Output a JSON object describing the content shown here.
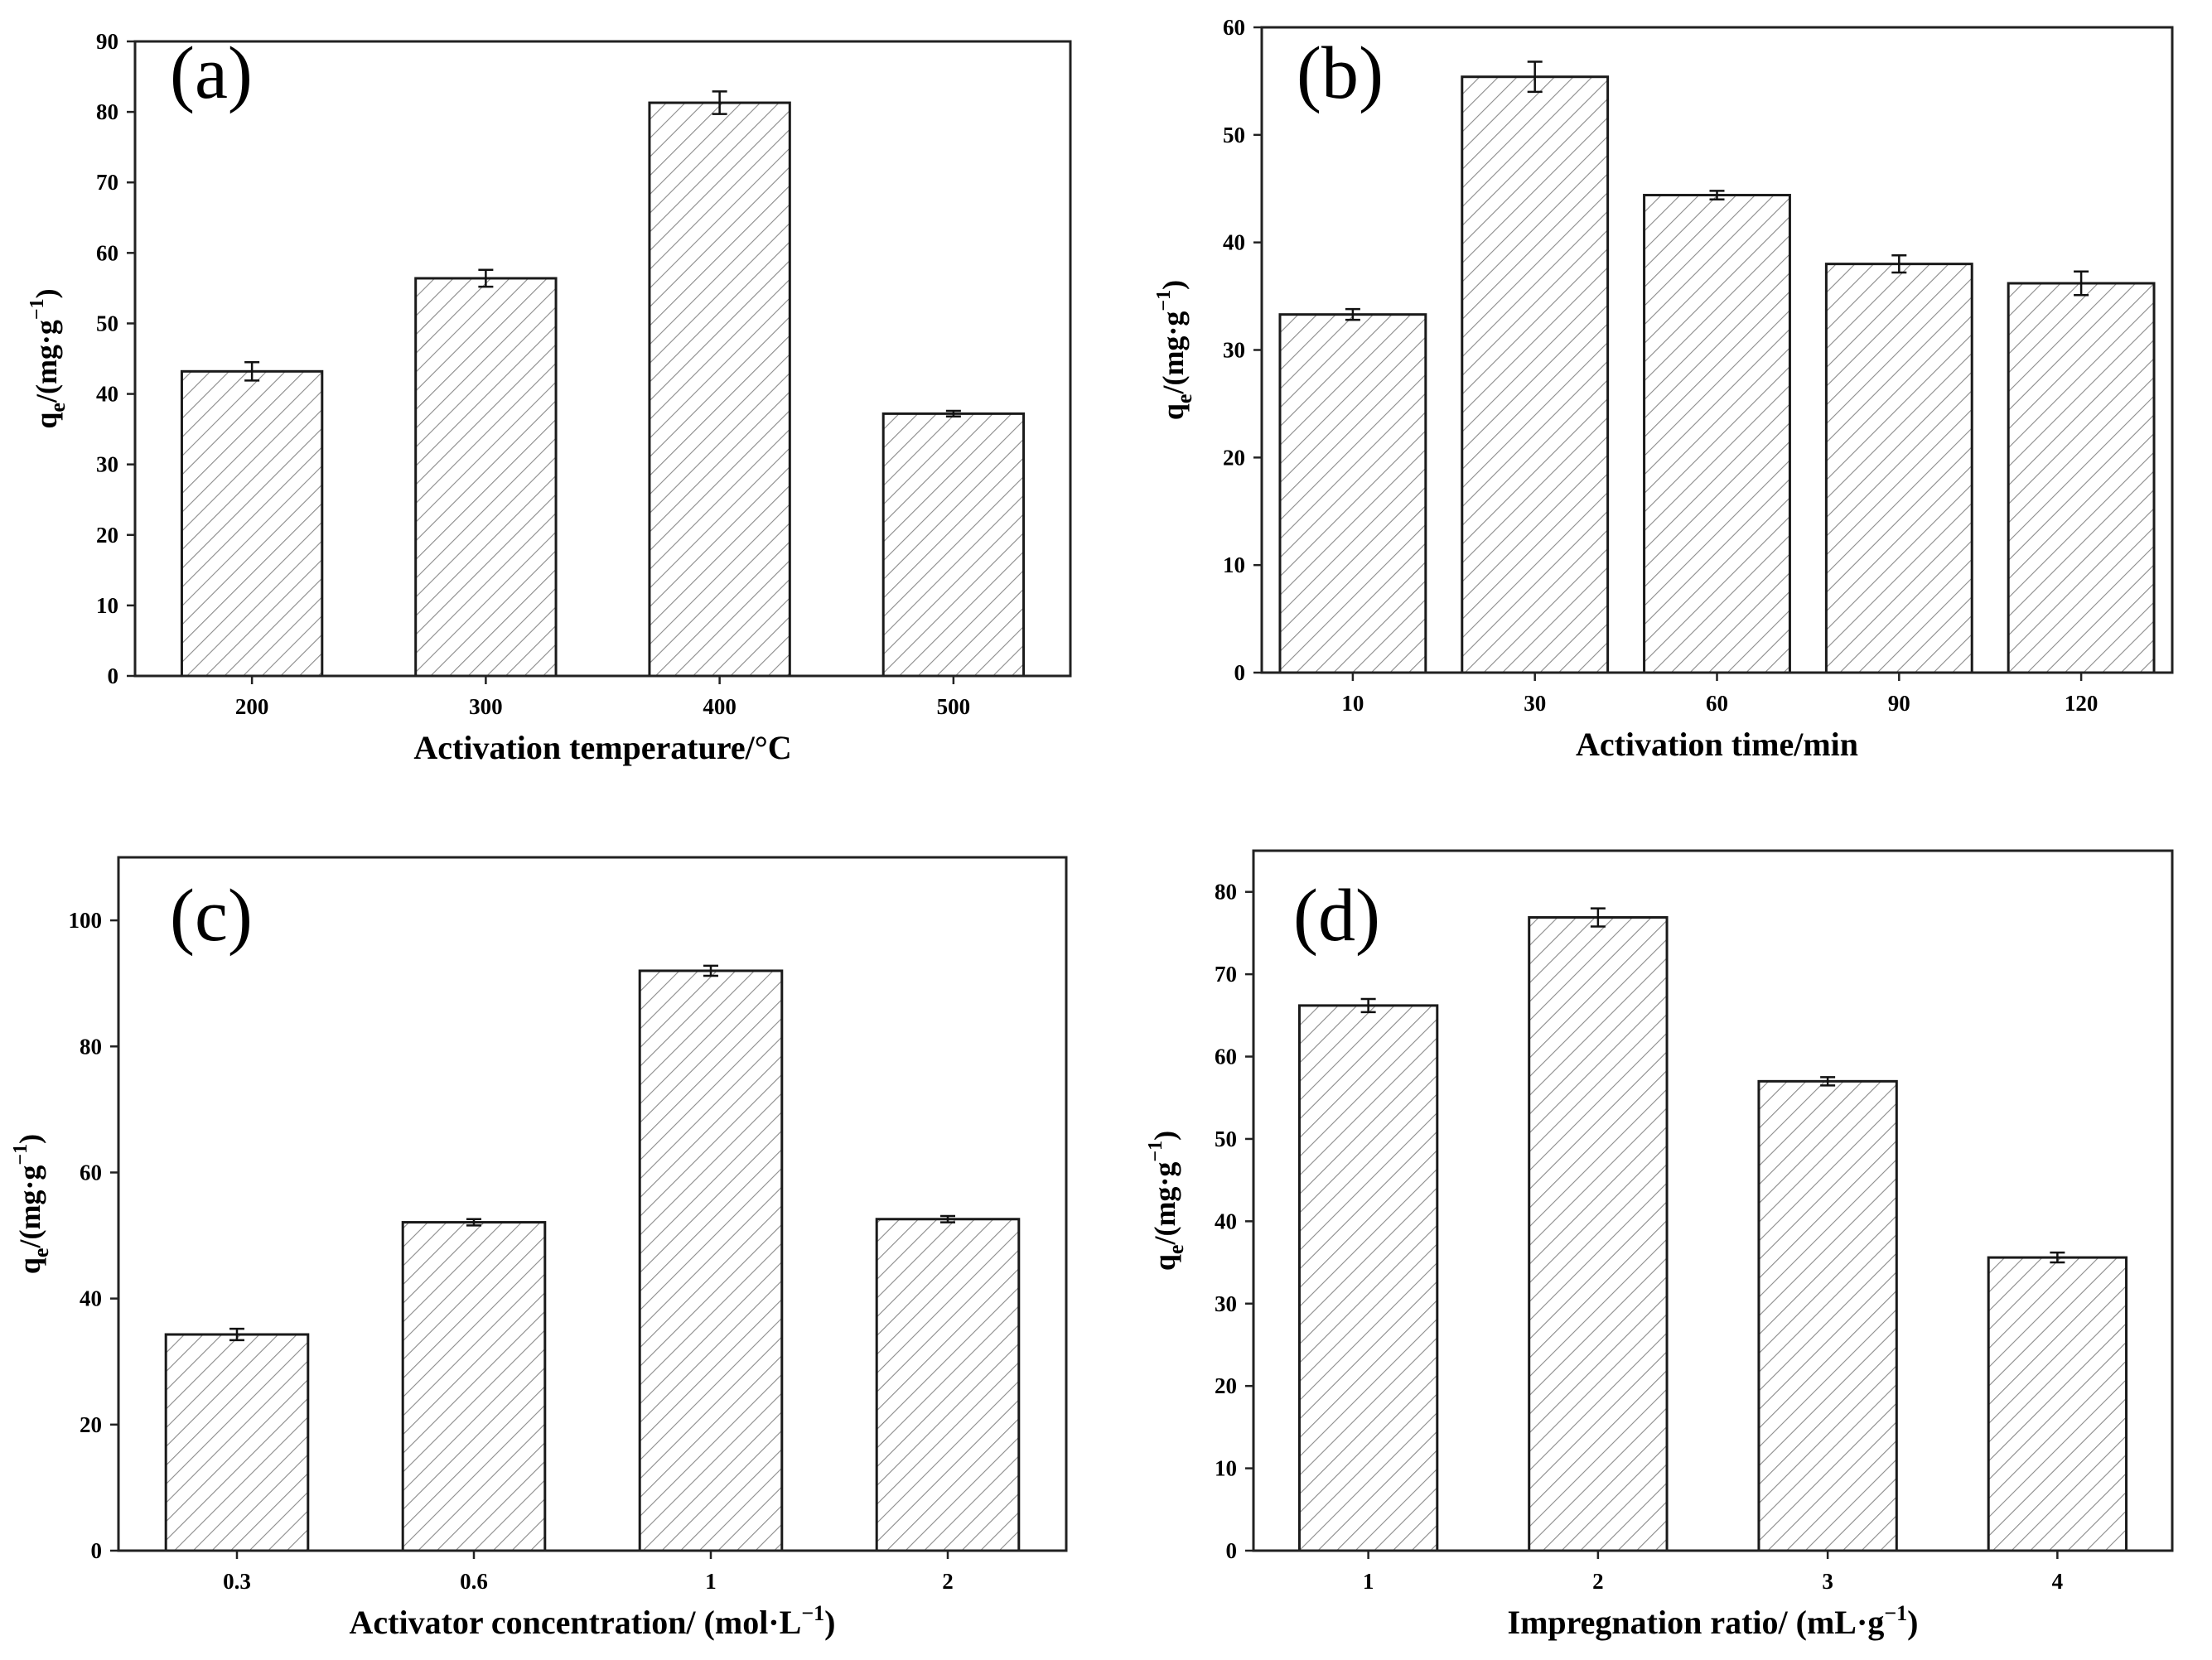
{
  "chart_data": [
    {
      "id": "a",
      "type": "bar",
      "panel_label": "(a)",
      "categories": [
        "200",
        "300",
        "400",
        "500"
      ],
      "values": [
        43.2,
        56.4,
        81.3,
        37.2
      ],
      "errors": [
        1.3,
        1.2,
        1.6,
        0.4
      ],
      "ylim": [
        0,
        90
      ],
      "yticks": [
        0,
        10,
        20,
        30,
        40,
        50,
        60,
        70,
        80,
        90
      ],
      "xlabel": "Activation temperature/°C",
      "ylabel": "qe/(mg·g⁻¹)",
      "ylabel_parts": {
        "q": "q",
        "sub": "e",
        "mid": "/(mg·g",
        "sup": "−1",
        "end": ")"
      }
    },
    {
      "id": "b",
      "type": "bar",
      "panel_label": "(b)",
      "categories": [
        "10",
        "30",
        "60",
        "90",
        "120"
      ],
      "values": [
        33.3,
        55.4,
        44.4,
        38.0,
        36.2
      ],
      "errors": [
        0.5,
        1.4,
        0.4,
        0.8,
        1.1
      ],
      "ylim": [
        0,
        60
      ],
      "yticks": [
        0,
        10,
        20,
        30,
        40,
        50,
        60
      ],
      "xlabel": "Activation time/min",
      "ylabel": "qe/(mg·g⁻¹)",
      "ylabel_parts": {
        "q": "q",
        "sub": "e",
        "mid": "/(mg·g",
        "sup": "−1",
        "end": ")"
      }
    },
    {
      "id": "c",
      "type": "bar",
      "panel_label": "(c)",
      "categories": [
        "0.3",
        "0.6",
        "1",
        "2"
      ],
      "values": [
        34.3,
        52.1,
        92.0,
        52.6
      ],
      "errors": [
        0.9,
        0.5,
        0.8,
        0.5
      ],
      "ylim": [
        0,
        110
      ],
      "yticks": [
        0,
        20,
        40,
        60,
        80,
        100
      ],
      "xlabel": "Activator concentration/ (mol·L⁻¹)",
      "xlabel_parts": {
        "main": "Activator concentration/ (mol·L",
        "sup": "−1",
        "end": ")"
      },
      "ylabel": "qe/(mg·g⁻¹)",
      "ylabel_parts": {
        "q": "q",
        "sub": "e",
        "mid": "/(mg·g",
        "sup": "−1",
        "end": ")"
      }
    },
    {
      "id": "d",
      "type": "bar",
      "panel_label": "(d)",
      "categories": [
        "1",
        "2",
        "3",
        "4"
      ],
      "values": [
        66.2,
        76.9,
        57.0,
        35.6
      ],
      "errors": [
        0.8,
        1.1,
        0.5,
        0.6
      ],
      "ylim": [
        0,
        85
      ],
      "yticks": [
        0,
        10,
        20,
        30,
        40,
        50,
        60,
        70,
        80
      ],
      "xlabel": "Impregnation ratio/ (mL·g⁻¹)",
      "xlabel_parts": {
        "main": "Impregnation ratio/ (mL·g",
        "sup": "−1",
        "end": ")"
      },
      "ylabel": "qe/(mg·g⁻¹)",
      "ylabel_parts": {
        "q": "q",
        "sub": "e",
        "mid": "/(mg·g",
        "sup": "−1",
        "end": ")"
      }
    }
  ]
}
